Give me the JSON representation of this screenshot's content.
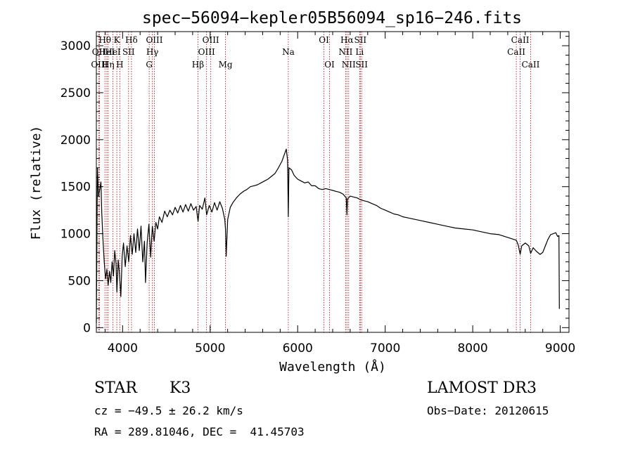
{
  "chart_data": {
    "type": "line",
    "title": "spec−56094−kepler05B56094_sp16−246.fits",
    "xlabel": "Wavelength (Å)",
    "ylabel": "Flux (relative)",
    "xlim": [
      3700,
      9100
    ],
    "ylim": [
      -50,
      3150
    ],
    "xticks": [
      4000,
      5000,
      6000,
      7000,
      8000,
      9000
    ],
    "yticks": [
      0,
      500,
      1000,
      1500,
      2000,
      2500,
      3000
    ],
    "spectrum": [
      [
        3700,
        50
      ],
      [
        3712,
        1700
      ],
      [
        3725,
        1400
      ],
      [
        3740,
        1480
      ],
      [
        3752,
        1550
      ],
      [
        3762,
        1220
      ],
      [
        3775,
        950
      ],
      [
        3790,
        700
      ],
      [
        3805,
        520
      ],
      [
        3820,
        620
      ],
      [
        3835,
        450
      ],
      [
        3850,
        600
      ],
      [
        3865,
        480
      ],
      [
        3880,
        700
      ],
      [
        3895,
        550
      ],
      [
        3910,
        820
      ],
      [
        3925,
        680
      ],
      [
        3935,
        380
      ],
      [
        3950,
        720
      ],
      [
        3965,
        560
      ],
      [
        3980,
        330
      ],
      [
        3995,
        760
      ],
      [
        4010,
        900
      ],
      [
        4030,
        650
      ],
      [
        4050,
        870
      ],
      [
        4070,
        700
      ],
      [
        4090,
        980
      ],
      [
        4110,
        780
      ],
      [
        4130,
        1000
      ],
      [
        4150,
        800
      ],
      [
        4170,
        1050
      ],
      [
        4190,
        820
      ],
      [
        4210,
        1080
      ],
      [
        4230,
        700
      ],
      [
        4250,
        920
      ],
      [
        4262,
        480
      ],
      [
        4280,
        900
      ],
      [
        4300,
        1100
      ],
      [
        4320,
        750
      ],
      [
        4340,
        1080
      ],
      [
        4360,
        920
      ],
      [
        4380,
        1120
      ],
      [
        4400,
        1050
      ],
      [
        4420,
        1180
      ],
      [
        4450,
        1120
      ],
      [
        4480,
        1240
      ],
      [
        4510,
        1180
      ],
      [
        4540,
        1250
      ],
      [
        4570,
        1200
      ],
      [
        4600,
        1280
      ],
      [
        4630,
        1220
      ],
      [
        4660,
        1300
      ],
      [
        4690,
        1230
      ],
      [
        4720,
        1310
      ],
      [
        4750,
        1240
      ],
      [
        4780,
        1320
      ],
      [
        4810,
        1250
      ],
      [
        4840,
        1290
      ],
      [
        4862,
        1130
      ],
      [
        4880,
        1300
      ],
      [
        4910,
        1260
      ],
      [
        4940,
        1380
      ],
      [
        4960,
        1200
      ],
      [
        4990,
        1300
      ],
      [
        5020,
        1230
      ],
      [
        5050,
        1330
      ],
      [
        5080,
        1250
      ],
      [
        5110,
        1340
      ],
      [
        5140,
        1270
      ],
      [
        5167,
        1150
      ],
      [
        5175,
        1050
      ],
      [
        5183,
        760
      ],
      [
        5200,
        1150
      ],
      [
        5230,
        1280
      ],
      [
        5260,
        1330
      ],
      [
        5300,
        1380
      ],
      [
        5340,
        1420
      ],
      [
        5380,
        1450
      ],
      [
        5420,
        1470
      ],
      [
        5460,
        1500
      ],
      [
        5500,
        1510
      ],
      [
        5540,
        1520
      ],
      [
        5580,
        1540
      ],
      [
        5620,
        1560
      ],
      [
        5660,
        1580
      ],
      [
        5700,
        1610
      ],
      [
        5740,
        1640
      ],
      [
        5780,
        1700
      ],
      [
        5820,
        1770
      ],
      [
        5850,
        1850
      ],
      [
        5870,
        1900
      ],
      [
        5885,
        1780
      ],
      [
        5893,
        1180
      ],
      [
        5900,
        1700
      ],
      [
        5930,
        1680
      ],
      [
        5960,
        1620
      ],
      [
        6000,
        1580
      ],
      [
        6040,
        1560
      ],
      [
        6080,
        1540
      ],
      [
        6120,
        1550
      ],
      [
        6160,
        1510
      ],
      [
        6200,
        1510
      ],
      [
        6240,
        1480
      ],
      [
        6280,
        1470
      ],
      [
        6320,
        1480
      ],
      [
        6360,
        1470
      ],
      [
        6400,
        1460
      ],
      [
        6440,
        1450
      ],
      [
        6480,
        1440
      ],
      [
        6520,
        1420
      ],
      [
        6555,
        1380
      ],
      [
        6563,
        1200
      ],
      [
        6570,
        1370
      ],
      [
        6600,
        1400
      ],
      [
        6640,
        1390
      ],
      [
        6680,
        1380
      ],
      [
        6720,
        1360
      ],
      [
        6760,
        1350
      ],
      [
        6800,
        1340
      ],
      [
        6850,
        1320
      ],
      [
        6900,
        1300
      ],
      [
        6950,
        1270
      ],
      [
        7000,
        1250
      ],
      [
        7050,
        1230
      ],
      [
        7100,
        1210
      ],
      [
        7150,
        1200
      ],
      [
        7200,
        1180
      ],
      [
        7250,
        1170
      ],
      [
        7300,
        1160
      ],
      [
        7400,
        1140
      ],
      [
        7500,
        1120
      ],
      [
        7600,
        1100
      ],
      [
        7700,
        1080
      ],
      [
        7800,
        1060
      ],
      [
        7900,
        1050
      ],
      [
        8000,
        1040
      ],
      [
        8100,
        1020
      ],
      [
        8200,
        1000
      ],
      [
        8300,
        990
      ],
      [
        8400,
        960
      ],
      [
        8498,
        930
      ],
      [
        8520,
        880
      ],
      [
        8542,
        780
      ],
      [
        8560,
        870
      ],
      [
        8600,
        900
      ],
      [
        8640,
        870
      ],
      [
        8662,
        790
      ],
      [
        8690,
        850
      ],
      [
        8730,
        810
      ],
      [
        8770,
        780
      ],
      [
        8800,
        800
      ],
      [
        8830,
        870
      ],
      [
        8860,
        940
      ],
      [
        8890,
        990
      ],
      [
        8920,
        1000
      ],
      [
        8950,
        1010
      ],
      [
        8970,
        970
      ],
      [
        8985,
        980
      ],
      [
        8990,
        200
      ]
    ],
    "lines": [
      {
        "wl": 3727,
        "label": "OII",
        "row": 2
      },
      {
        "wl": 3735,
        "label": "OIII",
        "row": 3
      },
      {
        "wl": 3798,
        "label": "Hθ",
        "row": 1
      },
      {
        "wl": 3820,
        "label": "HeI",
        "row": 2
      },
      {
        "wl": 3835,
        "label": "Hη",
        "row": 3
      },
      {
        "wl": 3889,
        "label": "HeI",
        "row": 2
      },
      {
        "wl": 3934,
        "label": "K",
        "row": 1
      },
      {
        "wl": 3968,
        "label": "H",
        "row": 3
      },
      {
        "wl": 4068,
        "label": "SII",
        "row": 2
      },
      {
        "wl": 4101,
        "label": "Hδ",
        "row": 1
      },
      {
        "wl": 4304,
        "label": "G",
        "row": 3
      },
      {
        "wl": 4340,
        "label": "Hγ",
        "row": 2
      },
      {
        "wl": 4363,
        "label": "OIII",
        "row": 1
      },
      {
        "wl": 4861,
        "label": "Hβ",
        "row": 3
      },
      {
        "wl": 4959,
        "label": "OIII",
        "row": 2
      },
      {
        "wl": 5007,
        "label": "OIII",
        "row": 1
      },
      {
        "wl": 5175,
        "label": "Mg",
        "row": 3
      },
      {
        "wl": 5893,
        "label": "Na",
        "row": 2
      },
      {
        "wl": 6300,
        "label": "OI",
        "row": 1
      },
      {
        "wl": 6364,
        "label": "OI",
        "row": 3
      },
      {
        "wl": 6548,
        "label": "NII",
        "row": 2
      },
      {
        "wl": 6563,
        "label": "Hα",
        "row": 1
      },
      {
        "wl": 6583,
        "label": "NII",
        "row": 3
      },
      {
        "wl": 6708,
        "label": "Li",
        "row": 2
      },
      {
        "wl": 6716,
        "label": "SII",
        "row": 1
      },
      {
        "wl": 6731,
        "label": "SII",
        "row": 3
      },
      {
        "wl": 8498,
        "label": "CaII",
        "row": 2
      },
      {
        "wl": 8542,
        "label": "CaII",
        "row": 1
      },
      {
        "wl": 8662,
        "label": "CaII",
        "row": 3
      }
    ],
    "line_color": "#b22222",
    "spectrum_color": "#000000"
  },
  "info": {
    "object_class": "STAR",
    "subclass": "K3",
    "survey": "LAMOST DR3",
    "redshift": "cz = −49.5 ± 26.2 km/s",
    "obs_date": "Obs−Date: 20120615",
    "coords": "RA = 289.81046, DEC =  41.45703"
  }
}
